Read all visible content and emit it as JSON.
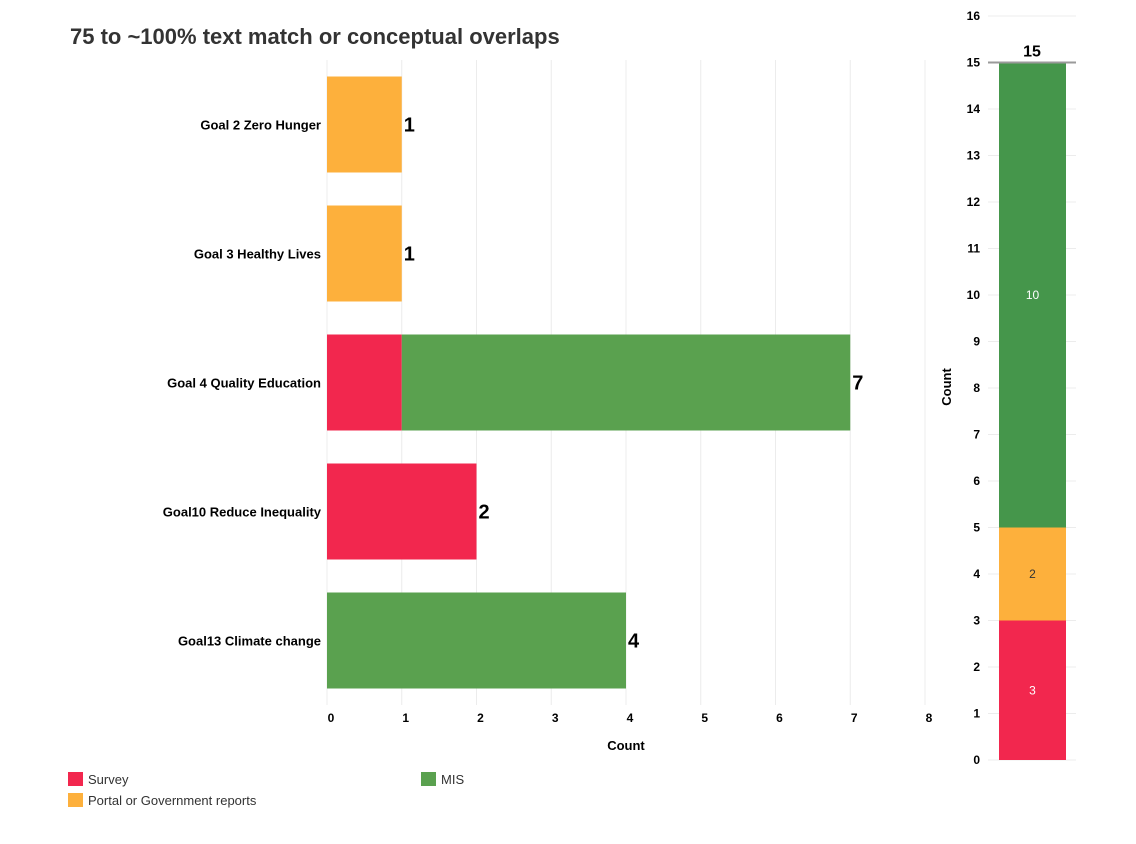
{
  "chart_data": [
    {
      "type": "bar",
      "orientation": "horizontal",
      "stacked": true,
      "title": "75 to ~100% text match or conceptual overlaps",
      "categories": [
        "Goal 2 Zero Hunger",
        "Goal 3  Healthy Lives",
        "Goal 4  Quality Education",
        "Goal10 Reduce Inequality",
        "Goal13 Climate change"
      ],
      "series": [
        {
          "name": "Survey",
          "color": "#f2274e",
          "values": [
            0,
            0,
            1,
            2,
            0
          ]
        },
        {
          "name": "Portal or Government reports",
          "color": "#fdb03c",
          "values": [
            1,
            1,
            0,
            0,
            0
          ]
        },
        {
          "name": "MIS",
          "color": "#5aa14f",
          "values": [
            0,
            0,
            6,
            0,
            4
          ]
        }
      ],
      "totals": [
        "1",
        "1",
        "7",
        "2",
        "4"
      ],
      "xlabel": "Count",
      "ylabel": "",
      "xlim": [
        0,
        8
      ],
      "xticks": [
        "0",
        "1",
        "2",
        "3",
        "4",
        "5",
        "6",
        "7",
        "8"
      ],
      "grid": true
    },
    {
      "type": "bar",
      "orientation": "vertical",
      "stacked": true,
      "series": [
        {
          "name": "Survey",
          "color": "#f2274e",
          "value": 3,
          "label": "3",
          "label_color": "#ffffff"
        },
        {
          "name": "Portal or Government reports",
          "color": "#fdb03c",
          "value": 2,
          "label": "2",
          "label_color": "#333333"
        },
        {
          "name": "MIS",
          "color": "#45964b",
          "value": 10,
          "label": "10",
          "label_color": "#ffffff"
        }
      ],
      "total": "15",
      "ylabel": "Count",
      "ylim": [
        0,
        16
      ],
      "yticks": [
        "0",
        "1",
        "2",
        "3",
        "4",
        "5",
        "6",
        "7",
        "8",
        "9",
        "10",
        "11",
        "12",
        "13",
        "14",
        "15",
        "16"
      ],
      "grid": true
    }
  ],
  "legend": {
    "placement": "bottom-left",
    "items": [
      {
        "label": "Survey",
        "color": "#f2274e"
      },
      {
        "label": "MIS",
        "color": "#5aa14f"
      },
      {
        "label": "Portal or Government reports",
        "color": "#fdb03c"
      }
    ]
  }
}
